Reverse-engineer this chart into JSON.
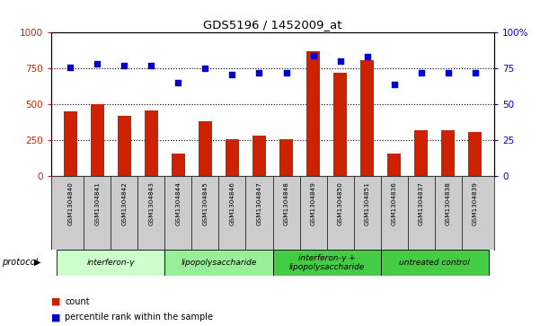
{
  "title": "GDS5196 / 1452009_at",
  "samples": [
    "GSM1304840",
    "GSM1304841",
    "GSM1304842",
    "GSM1304843",
    "GSM1304844",
    "GSM1304845",
    "GSM1304846",
    "GSM1304847",
    "GSM1304848",
    "GSM1304849",
    "GSM1304850",
    "GSM1304851",
    "GSM1304836",
    "GSM1304837",
    "GSM1304838",
    "GSM1304839"
  ],
  "counts": [
    450,
    500,
    420,
    460,
    155,
    385,
    255,
    280,
    255,
    870,
    720,
    810,
    155,
    320,
    320,
    310
  ],
  "percentiles": [
    76,
    78,
    77,
    77,
    65,
    75,
    71,
    72,
    72,
    84,
    80,
    83,
    64,
    72,
    72,
    72
  ],
  "groups": [
    {
      "label": "interferon-γ",
      "start": 0,
      "end": 4,
      "color": "#ccffcc"
    },
    {
      "label": "lipopolysaccharide",
      "start": 4,
      "end": 8,
      "color": "#99ee99"
    },
    {
      "label": "interferon-γ +\nlipopolysaccharide",
      "start": 8,
      "end": 12,
      "color": "#44cc44"
    },
    {
      "label": "untreated control",
      "start": 12,
      "end": 16,
      "color": "#44cc44"
    }
  ],
  "bar_color": "#cc2200",
  "dot_color": "#0000cc",
  "ylim_left": [
    0,
    1000
  ],
  "ylim_right": [
    0,
    100
  ],
  "yticks_left": [
    0,
    250,
    500,
    750,
    1000
  ],
  "yticks_right": [
    0,
    25,
    50,
    75,
    100
  ],
  "ytick_labels_right": [
    "0",
    "25",
    "50",
    "75",
    "100%"
  ],
  "grid_lines": [
    250,
    500,
    750
  ],
  "bg_color": "#ffffff",
  "plot_bg_color": "#ffffff",
  "label_bg": "#cccccc",
  "group_colors": [
    "#ccffcc",
    "#99ee99",
    "#44cc44",
    "#44cc44"
  ]
}
